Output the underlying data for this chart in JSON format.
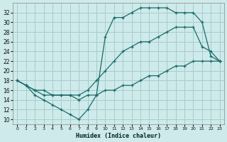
{
  "xlabel": "Humidex (Indice chaleur)",
  "background_color": "#ceeaea",
  "grid_color": "#a8cccc",
  "line_color": "#1a6b6b",
  "xlim": [
    -0.5,
    23.5
  ],
  "ylim": [
    9,
    34
  ],
  "xticks": [
    0,
    1,
    2,
    3,
    4,
    5,
    6,
    7,
    8,
    9,
    10,
    11,
    12,
    13,
    14,
    15,
    16,
    17,
    18,
    19,
    20,
    21,
    22,
    23
  ],
  "yticks": [
    10,
    12,
    14,
    16,
    18,
    20,
    22,
    24,
    26,
    28,
    30,
    32
  ],
  "series": [
    {
      "x": [
        0,
        1,
        2,
        3,
        4,
        5,
        6,
        7,
        8,
        9,
        10,
        11,
        12,
        13,
        14,
        15,
        16,
        17,
        18,
        19,
        20,
        21,
        22,
        23
      ],
      "y": [
        18,
        17,
        15,
        14,
        13,
        12,
        11,
        10,
        12,
        15,
        27,
        31,
        31,
        32,
        33,
        33,
        33,
        33,
        32,
        32,
        32,
        30,
        23,
        22
      ]
    },
    {
      "x": [
        0,
        2,
        3,
        9,
        10,
        11,
        12,
        13,
        14,
        15,
        16,
        17,
        18,
        19,
        20,
        21,
        22,
        23
      ],
      "y": [
        18,
        16,
        15,
        18,
        20,
        22,
        24,
        25,
        26,
        26,
        27,
        28,
        29,
        29,
        29,
        25,
        24,
        22
      ]
    },
    {
      "x": [
        0,
        1,
        2,
        3,
        4,
        5,
        6,
        7,
        8,
        9,
        10,
        11,
        12,
        13,
        14,
        15,
        16,
        17,
        18,
        19,
        20,
        21,
        22,
        23
      ],
      "y": [
        18,
        17,
        16,
        16,
        15,
        15,
        15,
        14,
        15,
        15,
        16,
        16,
        17,
        17,
        18,
        19,
        19,
        20,
        21,
        21,
        22,
        22,
        22,
        22
      ]
    }
  ],
  "series2_full": {
    "x": [
      0,
      1,
      2,
      3,
      4,
      5,
      6,
      7,
      8,
      9,
      10,
      11,
      12,
      13,
      14,
      15,
      16,
      17,
      18,
      19,
      20,
      21,
      22,
      23
    ],
    "y": [
      18,
      17,
      16,
      15,
      15,
      15,
      15,
      15,
      16,
      18,
      20,
      22,
      24,
      25,
      26,
      26,
      27,
      28,
      29,
      29,
      29,
      25,
      24,
      22
    ]
  }
}
